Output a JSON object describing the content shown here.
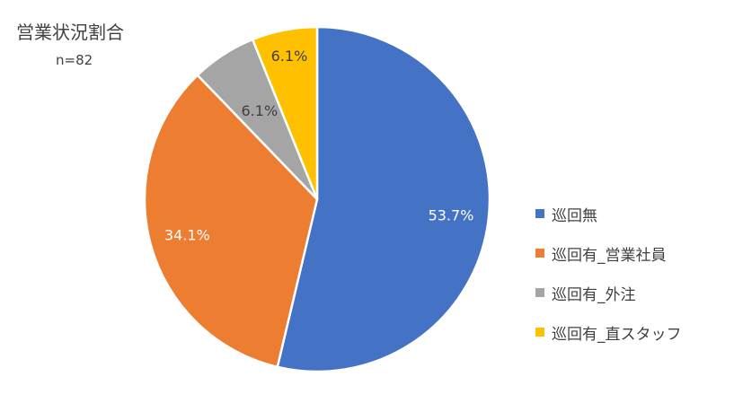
{
  "chart_data": {
    "type": "pie",
    "title": "営業状況割合",
    "subtitle": "n=82",
    "categories": [
      "巡回無",
      "巡回有_営業社員",
      "巡回有_外注",
      "巡回有_直スタッフ"
    ],
    "values": [
      53.7,
      34.1,
      6.1,
      6.1
    ],
    "data_labels": [
      "53.7%",
      "34.1%",
      "6.1%",
      "6.1%"
    ],
    "colors": [
      "#4472C4",
      "#ED7D31",
      "#A5A5A5",
      "#FFC000"
    ],
    "start_angle": "12 o'clock",
    "direction": "clockwise",
    "legend_position": "right"
  }
}
